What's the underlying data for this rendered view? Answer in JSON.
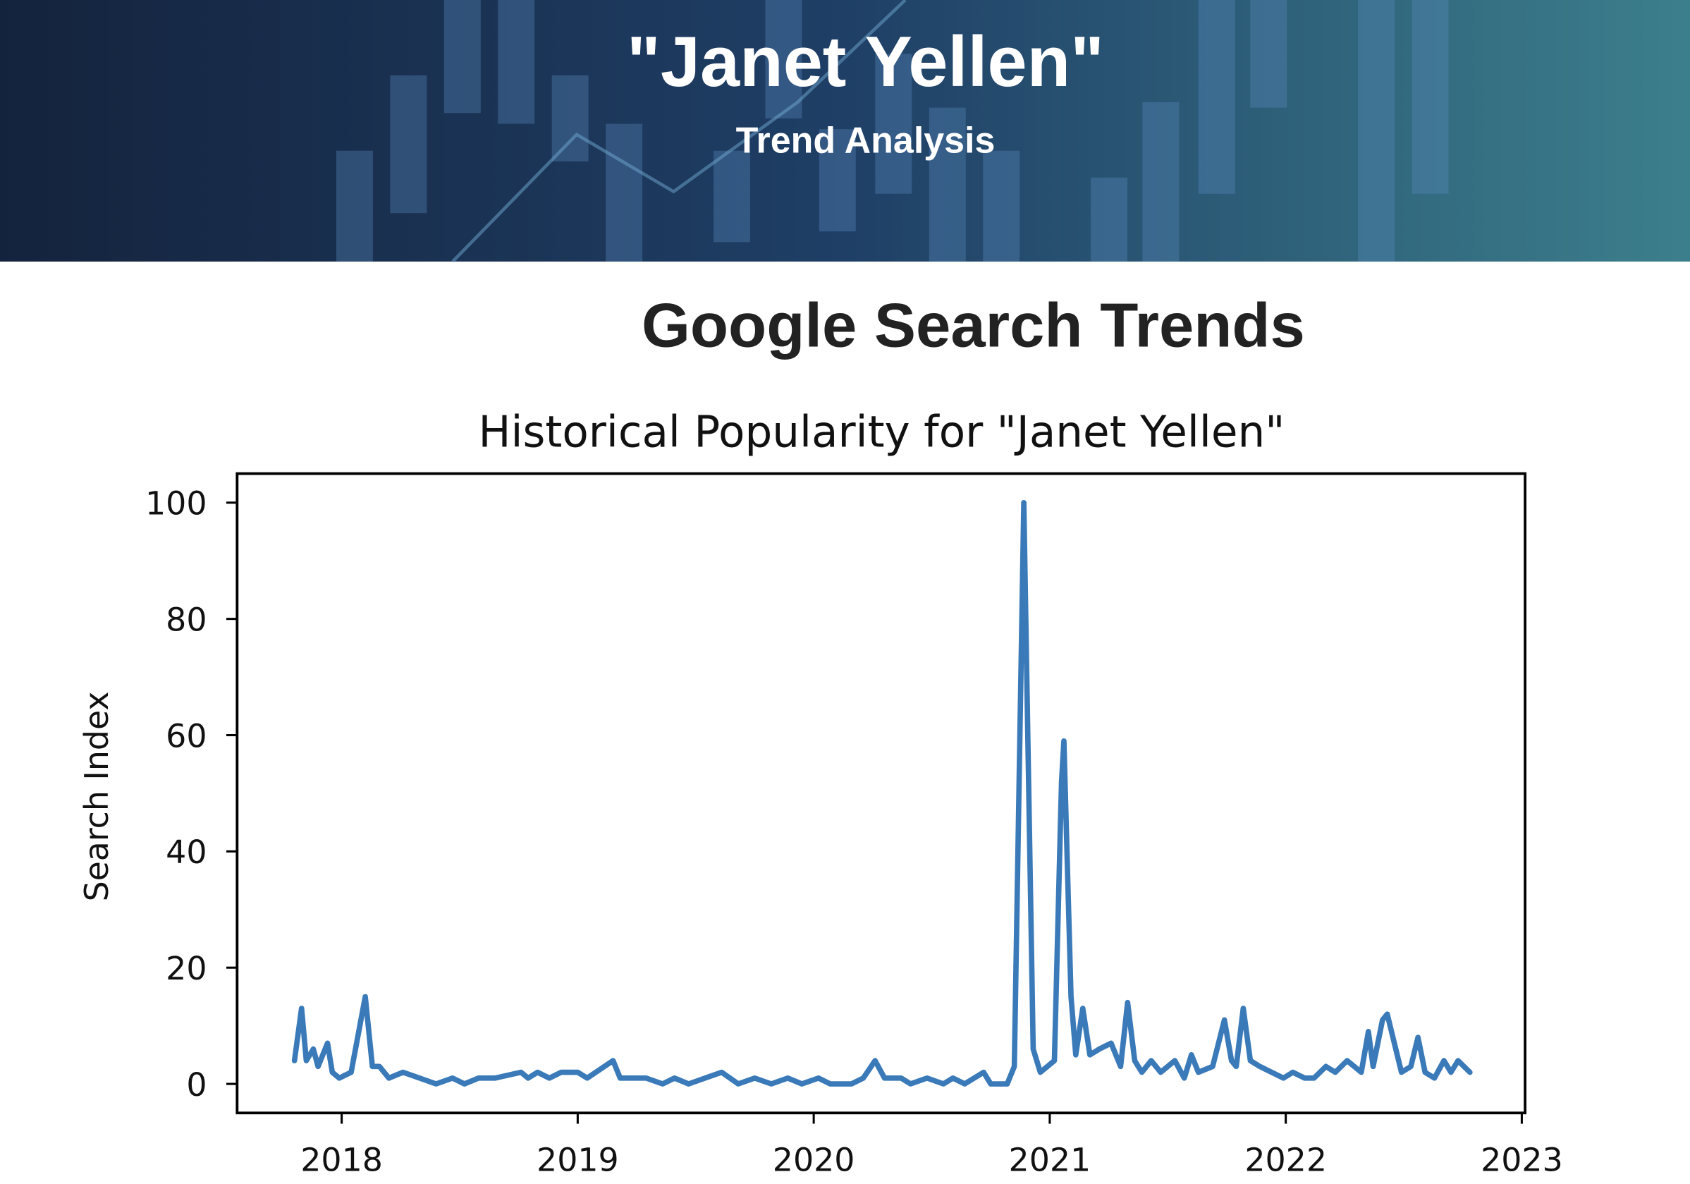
{
  "header": {
    "title": "\"Janet Yellen\"",
    "subtitle": "Trend Analysis"
  },
  "section_title": "Google Search Trends",
  "chart_data": {
    "type": "line",
    "title": "Historical Popularity for \"Janet Yellen\"",
    "ylabel": "Search Index",
    "color": "#3a7ab8",
    "x": [
      2017.8,
      2017.83,
      2017.85,
      2017.88,
      2017.9,
      2017.94,
      2017.96,
      2017.99,
      2018.04,
      2018.1,
      2018.13,
      2018.16,
      2018.2,
      2018.26,
      2018.33,
      2018.4,
      2018.47,
      2018.52,
      2018.58,
      2018.65,
      2018.76,
      2018.79,
      2018.83,
      2018.88,
      2018.93,
      2019.0,
      2019.04,
      2019.15,
      2019.18,
      2019.29,
      2019.36,
      2019.41,
      2019.47,
      2019.54,
      2019.61,
      2019.68,
      2019.75,
      2019.82,
      2019.89,
      2019.95,
      2020.02,
      2020.07,
      2020.16,
      2020.21,
      2020.26,
      2020.3,
      2020.37,
      2020.41,
      2020.48,
      2020.55,
      2020.59,
      2020.64,
      2020.72,
      2020.75,
      2020.82,
      2020.85,
      2020.89,
      2020.93,
      2020.96,
      2020.99,
      2021.02,
      2021.05,
      2021.06,
      2021.09,
      2021.11,
      2021.14,
      2021.17,
      2021.21,
      2021.26,
      2021.3,
      2021.33,
      2021.36,
      2021.39,
      2021.43,
      2021.47,
      2021.53,
      2021.57,
      2021.6,
      2021.63,
      2021.69,
      2021.74,
      2021.77,
      2021.79,
      2021.82,
      2021.85,
      2021.89,
      2021.94,
      2021.99,
      2022.03,
      2022.08,
      2022.12,
      2022.17,
      2022.21,
      2022.26,
      2022.32,
      2022.35,
      2022.37,
      2022.41,
      2022.43,
      2022.46,
      2022.49,
      2022.53,
      2022.56,
      2022.59,
      2022.63,
      2022.67,
      2022.7,
      2022.73,
      2022.78
    ],
    "values": [
      4,
      13,
      4,
      6,
      3,
      7,
      2,
      1,
      2,
      15,
      3,
      3,
      1,
      2,
      1,
      0,
      1,
      0,
      1,
      1,
      2,
      1,
      2,
      1,
      2,
      2,
      1,
      4,
      1,
      1,
      0,
      1,
      0,
      1,
      2,
      0,
      1,
      0,
      1,
      0,
      1,
      0,
      0,
      1,
      4,
      1,
      1,
      0,
      1,
      0,
      1,
      0,
      2,
      0,
      0,
      3,
      100,
      6,
      2,
      3,
      4,
      52,
      59,
      15,
      5,
      13,
      5,
      6,
      7,
      3,
      14,
      4,
      2,
      4,
      2,
      4,
      1,
      5,
      2,
      3,
      11,
      4,
      3,
      13,
      4,
      3,
      2,
      1,
      2,
      1,
      1,
      3,
      2,
      4,
      2,
      9,
      3,
      11,
      12,
      7,
      2,
      3,
      8,
      2,
      1,
      4,
      2,
      4,
      2
    ],
    "xlim": [
      2017.557,
      2023.014
    ],
    "ylim": [
      -5,
      105
    ],
    "xticks": [
      2018,
      2019,
      2020,
      2021,
      2022,
      2023
    ],
    "yticks": [
      0,
      20,
      40,
      60,
      80,
      100
    ]
  }
}
